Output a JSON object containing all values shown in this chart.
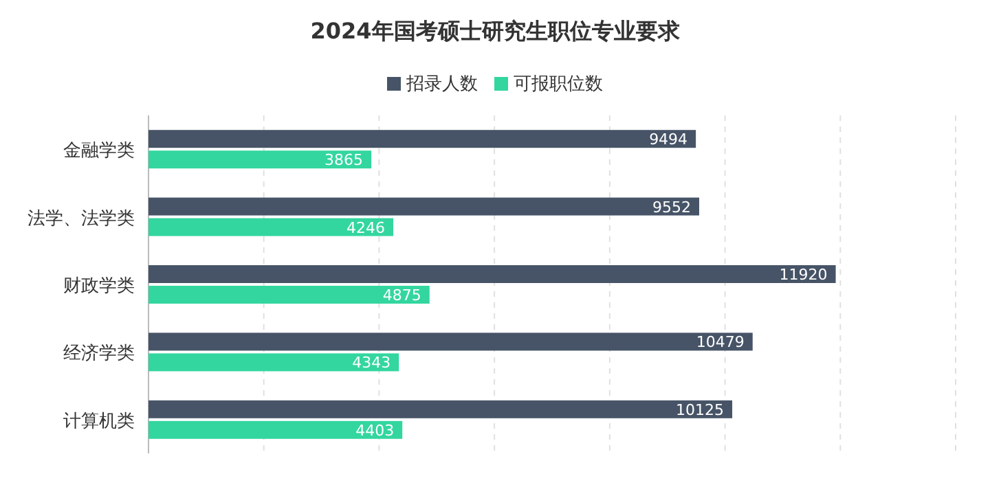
{
  "chart_data": {
    "type": "bar",
    "orientation": "horizontal",
    "title": "2024年国考硕士研究生职位专业要求",
    "categories": [
      "金融学类",
      "法学、法学类",
      "财政学类",
      "经济学类",
      "计算机类"
    ],
    "series": [
      {
        "name": "招录人数",
        "color": "#475467",
        "values": [
          9494,
          9552,
          11920,
          10479,
          10125
        ]
      },
      {
        "name": "可报职位数",
        "color": "#33d69f",
        "values": [
          3865,
          4246,
          4875,
          4343,
          4403
        ]
      }
    ],
    "xlim": [
      0,
      14000
    ],
    "xticks": [
      0,
      2000,
      4000,
      6000,
      8000,
      10000,
      12000,
      14000
    ],
    "tick_labels": "y",
    "grid": "x",
    "legend": "top",
    "data_labels": true
  }
}
